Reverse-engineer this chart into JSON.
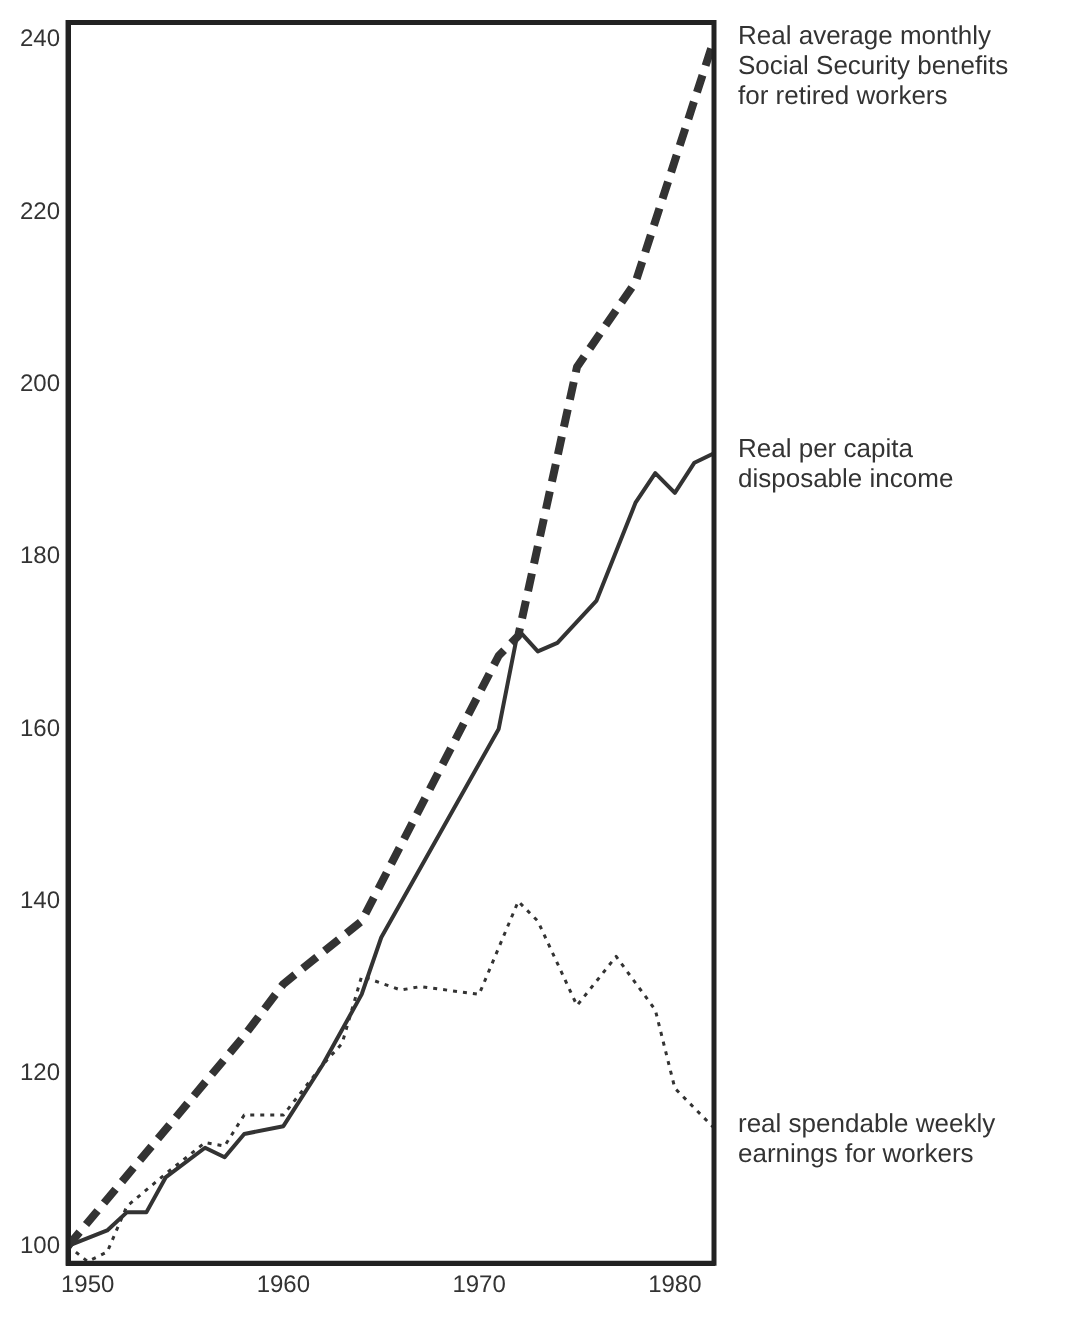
{
  "chart_data": {
    "type": "line",
    "xlim": [
      1949,
      1982
    ],
    "xticks": [
      1950,
      1960,
      1970,
      1980
    ],
    "ylim": [
      98,
      242
    ],
    "yticks": [
      100,
      120,
      140,
      160,
      180,
      200,
      220,
      240
    ],
    "grid": false,
    "marker": "none",
    "series": [
      {
        "name": "Real average monthly Social Security benefits for retired workers",
        "color": "#333333",
        "line_style": "dashed",
        "x": [
          1949,
          1958,
          1960,
          1964,
          1971,
          1972,
          1975,
          1978,
          1982
        ],
        "values": [
          100,
          124.4,
          130.4,
          137.7,
          168.5,
          170.8,
          202,
          211.9,
          240
        ]
      },
      {
        "name": "Real per capita disposable income",
        "color": "#333333",
        "line_style": "solid",
        "x": [
          1949,
          1951,
          1952,
          1953,
          1954,
          1956,
          1957,
          1958,
          1960,
          1962,
          1964,
          1965,
          1971,
          1972,
          1973,
          1974,
          1976,
          1978,
          1979,
          1980,
          1981,
          1982
        ],
        "values": [
          100,
          101.8,
          103.9,
          103.9,
          108,
          111.4,
          110.3,
          113,
          113.9,
          121,
          129.2,
          135.8,
          160,
          171.5,
          169,
          170,
          174.9,
          186.3,
          189.7,
          187.4,
          190.9,
          192
        ]
      },
      {
        "name": "real spendable weekly earnings for workers",
        "color": "#333333",
        "line_style": "dotted",
        "x": [
          1949,
          1950,
          1951,
          1952,
          1954,
          1956,
          1957,
          1958,
          1960,
          1962,
          1963,
          1964,
          1966,
          1967,
          1970,
          1972,
          1973,
          1975,
          1977,
          1979,
          1980,
          1982
        ],
        "values": [
          100,
          98.2,
          99.3,
          104.6,
          108.4,
          112,
          111.6,
          115.2,
          115.2,
          121,
          123.5,
          131.3,
          129.7,
          130.1,
          129.2,
          140,
          137.7,
          127.9,
          133.6,
          127.4,
          118.3,
          113.7
        ]
      }
    ]
  }
}
